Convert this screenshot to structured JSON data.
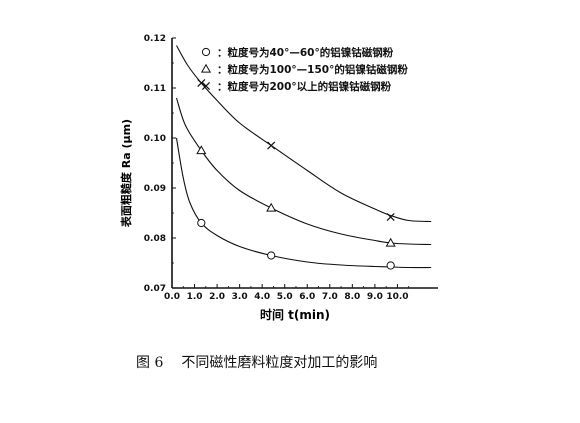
{
  "caption": {
    "number": "图 6",
    "text": "不同磁性磨料粒度对加工的影响"
  },
  "chart_data": {
    "type": "line",
    "title": "",
    "xlabel": "时间 t(min)",
    "ylabel": "表面粗糙度 Ra (μm)",
    "xlim": [
      0,
      11.8
    ],
    "ylim": [
      0.07,
      0.12
    ],
    "x_ticks": [
      "0.0",
      "1.0",
      "2.0",
      "3.0",
      "4.0",
      "5.0",
      "6.0",
      "7.0",
      "8.0",
      "9.0",
      "10.0"
    ],
    "y_ticks": [
      "0.07",
      "0.08",
      "0.09",
      "0.10",
      "0.11",
      "0.12"
    ],
    "grid": false,
    "legend_position": "top",
    "series": [
      {
        "name": "：粒度号为40°—60°的铝镍钴磁钢粉",
        "marker": "circle",
        "points": [
          [
            1.3,
            0.083
          ],
          [
            4.4,
            0.0765
          ],
          [
            9.7,
            0.0745
          ]
        ],
        "curve": [
          [
            0.2,
            0.1
          ],
          [
            0.5,
            0.092
          ],
          [
            0.8,
            0.087
          ],
          [
            1.3,
            0.083
          ],
          [
            2.0,
            0.0805
          ],
          [
            3.0,
            0.0783
          ],
          [
            4.4,
            0.0765
          ],
          [
            6.0,
            0.0752
          ],
          [
            7.5,
            0.0746
          ],
          [
            9.0,
            0.0743
          ],
          [
            9.7,
            0.0742
          ],
          [
            10.5,
            0.0741
          ],
          [
            11.5,
            0.0741
          ]
        ]
      },
      {
        "name": "：粒度号为100°—150°的铝镍钴磁钢粉",
        "marker": "triangle",
        "points": [
          [
            1.3,
            0.0975
          ],
          [
            4.4,
            0.086
          ],
          [
            9.7,
            0.079
          ]
        ],
        "curve": [
          [
            0.2,
            0.108
          ],
          [
            0.6,
            0.1025
          ],
          [
            1.3,
            0.0975
          ],
          [
            2.0,
            0.0935
          ],
          [
            3.0,
            0.0895
          ],
          [
            4.4,
            0.086
          ],
          [
            6.0,
            0.0828
          ],
          [
            7.5,
            0.0808
          ],
          [
            9.0,
            0.0795
          ],
          [
            9.7,
            0.079
          ],
          [
            10.5,
            0.0788
          ],
          [
            11.5,
            0.0787
          ]
        ]
      },
      {
        "name": "：粒度号为200°以上的铝镍钴磁钢粉",
        "marker": "cross",
        "points": [
          [
            1.3,
            0.111
          ],
          [
            4.4,
            0.0985
          ],
          [
            9.7,
            0.0842
          ]
        ],
        "curve": [
          [
            0.2,
            0.1185
          ],
          [
            0.7,
            0.1145
          ],
          [
            1.3,
            0.111
          ],
          [
            2.0,
            0.1075
          ],
          [
            3.0,
            0.103
          ],
          [
            4.4,
            0.0985
          ],
          [
            6.0,
            0.0935
          ],
          [
            7.5,
            0.089
          ],
          [
            9.0,
            0.0858
          ],
          [
            9.7,
            0.0845
          ],
          [
            10.5,
            0.0835
          ],
          [
            11.5,
            0.0833
          ]
        ]
      }
    ]
  }
}
